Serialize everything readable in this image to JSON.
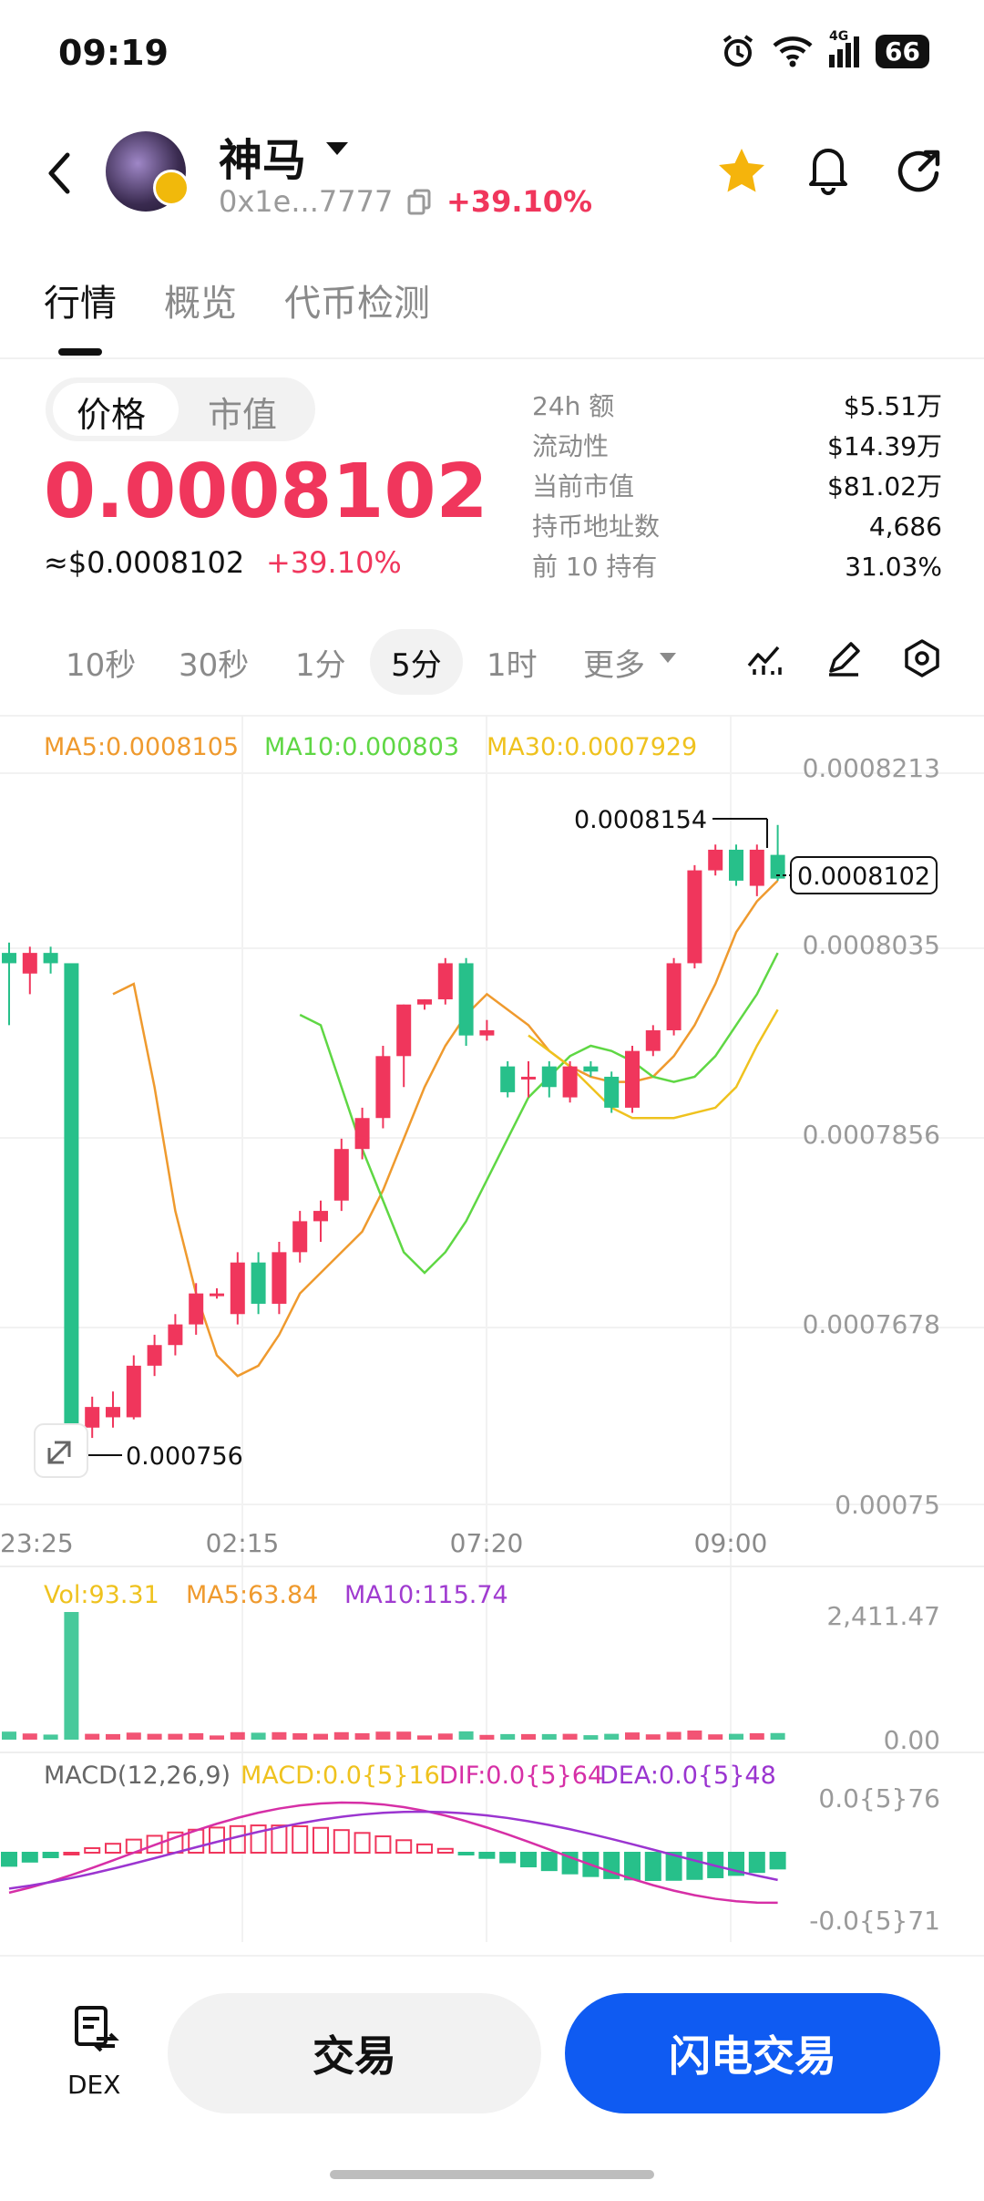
{
  "status": {
    "time": "09:19",
    "network": "4G",
    "battery": "66"
  },
  "header": {
    "token_name": "神马",
    "address": "0x1e...7777",
    "change": "+39.10%"
  },
  "tabs": [
    {
      "label": "行情"
    },
    {
      "label": "概览"
    },
    {
      "label": "代币检测"
    }
  ],
  "segment": {
    "price": "价格",
    "mcap": "市值"
  },
  "price": {
    "value": "0.0008102",
    "usd": "≈$0.0008102",
    "change": "+39.10%"
  },
  "stats": [
    {
      "label": "24h 额",
      "value": "$5.51万"
    },
    {
      "label": "流动性",
      "value": "$14.39万"
    },
    {
      "label": "当前市值",
      "value": "$81.02万"
    },
    {
      "label": "持币地址数",
      "value": "4,686"
    },
    {
      "label": "前 10 持有",
      "value": "31.03%"
    }
  ],
  "timeframes": [
    "10秒",
    "30秒",
    "1分",
    "5分",
    "1时",
    "更多"
  ],
  "selected_timeframe": "5分",
  "ma": {
    "ma5": "MA5:0.0008105",
    "ma10": "MA10:0.000803",
    "ma30": "MA30:0.0007929"
  },
  "price_axis": [
    "0.0008213",
    "0.0008035",
    "0.0007856",
    "0.0007678",
    "0.00075"
  ],
  "time_axis": [
    "23:25",
    "02:15",
    "07:20",
    "09:00"
  ],
  "markers": {
    "high": "0.0008154",
    "low": "0.000756",
    "current": "0.0008102"
  },
  "vol": {
    "vol": "Vol:93.31",
    "ma5": "MA5:63.84",
    "ma10": "MA10:115.74",
    "axis_top": "2,411.47",
    "axis_bottom": "0.00"
  },
  "macd": {
    "title": "MACD(12,26,9)",
    "macd": "MACD:0.0{5}16",
    "dif": "DIF:0.0{5}64",
    "dea": "DEA:0.0{5}48",
    "axis_top": "0.0{5}76",
    "axis_bottom": "-0.0{5}71"
  },
  "bottom": {
    "dex": "DEX",
    "trade": "交易",
    "flash": "闪电交易"
  },
  "colors": {
    "up": "#f0365c",
    "down": "#27c08a",
    "accent": "#0f5bf2",
    "ma5": "#ef9a2e",
    "ma10": "#5fd744",
    "ma30": "#efc21e",
    "dif": "#d62fa6",
    "dea": "#9b35d0"
  },
  "chart_data": {
    "type": "candlestick",
    "categories": [
      "23:25",
      "02:15",
      "07:20",
      "09:00"
    ],
    "candles": [
      {
        "o": 0.000803,
        "h": 0.000804,
        "l": 0.000796,
        "c": 0.000802
      },
      {
        "o": 0.000801,
        "h": 0.0008036,
        "l": 0.000799,
        "c": 0.000803
      },
      {
        "o": 0.000803,
        "h": 0.0008036,
        "l": 0.000801,
        "c": 0.000802
      },
      {
        "o": 0.000802,
        "h": 0.000802,
        "l": 0.000756,
        "c": 0.000757
      },
      {
        "o": 0.000757,
        "h": 0.00076,
        "l": 0.000756,
        "c": 0.000759
      },
      {
        "o": 0.000758,
        "h": 0.0007605,
        "l": 0.000757,
        "c": 0.000759
      },
      {
        "o": 0.000758,
        "h": 0.000764,
        "l": 0.0007578,
        "c": 0.000763
      },
      {
        "o": 0.000763,
        "h": 0.000766,
        "l": 0.000762,
        "c": 0.000765
      },
      {
        "o": 0.000765,
        "h": 0.000768,
        "l": 0.000764,
        "c": 0.000767
      },
      {
        "o": 0.000767,
        "h": 0.000771,
        "l": 0.000766,
        "c": 0.00077
      },
      {
        "o": 0.00077,
        "h": 0.0007705,
        "l": 0.0007695,
        "c": 0.00077
      },
      {
        "o": 0.000768,
        "h": 0.000774,
        "l": 0.000767,
        "c": 0.000773
      },
      {
        "o": 0.000773,
        "h": 0.000774,
        "l": 0.000768,
        "c": 0.000769
      },
      {
        "o": 0.000769,
        "h": 0.000775,
        "l": 0.000768,
        "c": 0.000774
      },
      {
        "o": 0.000774,
        "h": 0.000778,
        "l": 0.000773,
        "c": 0.000777
      },
      {
        "o": 0.000777,
        "h": 0.000779,
        "l": 0.000775,
        "c": 0.000778
      },
      {
        "o": 0.000779,
        "h": 0.000785,
        "l": 0.000778,
        "c": 0.000784
      },
      {
        "o": 0.000784,
        "h": 0.000788,
        "l": 0.000783,
        "c": 0.000787
      },
      {
        "o": 0.000787,
        "h": 0.000794,
        "l": 0.000786,
        "c": 0.000793
      },
      {
        "o": 0.000793,
        "h": 0.000798,
        "l": 0.00079,
        "c": 0.000798
      },
      {
        "o": 0.000798,
        "h": 0.0007985,
        "l": 0.0007975,
        "c": 0.0007985
      },
      {
        "o": 0.0007985,
        "h": 0.0008025,
        "l": 0.000798,
        "c": 0.000802
      },
      {
        "o": 0.000802,
        "h": 0.0008025,
        "l": 0.000794,
        "c": 0.000795
      },
      {
        "o": 0.000795,
        "h": 0.0007965,
        "l": 0.0007945,
        "c": 0.0007955
      },
      {
        "o": 0.000792,
        "h": 0.0007925,
        "l": 0.000789,
        "c": 0.0007895
      },
      {
        "o": 0.000791,
        "h": 0.0007925,
        "l": 0.000789,
        "c": 0.000791
      },
      {
        "o": 0.000792,
        "h": 0.0007925,
        "l": 0.000789,
        "c": 0.00079
      },
      {
        "o": 0.000789,
        "h": 0.0007925,
        "l": 0.0007885,
        "c": 0.000792
      },
      {
        "o": 0.000792,
        "h": 0.0007925,
        "l": 0.000791,
        "c": 0.0007915
      },
      {
        "o": 0.000791,
        "h": 0.0007915,
        "l": 0.0007875,
        "c": 0.000788
      },
      {
        "o": 0.000788,
        "h": 0.000794,
        "l": 0.0007875,
        "c": 0.0007935
      },
      {
        "o": 0.0007935,
        "h": 0.000796,
        "l": 0.000793,
        "c": 0.0007955
      },
      {
        "o": 0.0007955,
        "h": 0.0008025,
        "l": 0.000795,
        "c": 0.000802
      },
      {
        "o": 0.000802,
        "h": 0.0008115,
        "l": 0.0008015,
        "c": 0.000811
      },
      {
        "o": 0.000811,
        "h": 0.0008135,
        "l": 0.0008105,
        "c": 0.000813
      },
      {
        "o": 0.000813,
        "h": 0.0008135,
        "l": 0.0008095,
        "c": 0.00081
      },
      {
        "o": 0.0008095,
        "h": 0.0008135,
        "l": 0.0008085,
        "c": 0.000813
      },
      {
        "o": 0.0008125,
        "h": 0.0008154,
        "l": 0.00081,
        "c": 0.0008102
      }
    ],
    "ma5": [
      0.000799,
      0.0008,
      0.00079,
      0.000778,
      0.00077,
      0.000764,
      0.000762,
      0.000763,
      0.000766,
      0.00077,
      0.000772,
      0.000774,
      0.000776,
      0.00078,
      0.000785,
      0.00079,
      0.000794,
      0.000797,
      0.000799,
      0.0007975,
      0.000796,
      0.0007935,
      0.000792,
      0.000791,
      0.0007905,
      0.0007905,
      0.000791,
      0.000793,
      0.000796,
      0.0008,
      0.000805,
      0.000808,
      0.00081
    ],
    "ma10": [
      0.000797,
      0.000796,
      0.00079,
      0.000784,
      0.000779,
      0.000774,
      0.000772,
      0.000774,
      0.000777,
      0.000781,
      0.000785,
      0.000789,
      0.000791,
      0.000793,
      0.000794,
      0.0007935,
      0.0007925,
      0.000791,
      0.0007905,
      0.000791,
      0.000793,
      0.000796,
      0.000799,
      0.000803
    ],
    "ma30": [
      0.000795,
      0.0007935,
      0.000792,
      0.00079,
      0.000788,
      0.000787,
      0.000787,
      0.000787,
      0.0007875,
      0.000788,
      0.00079,
      0.000794,
      0.0007975
    ]
  }
}
